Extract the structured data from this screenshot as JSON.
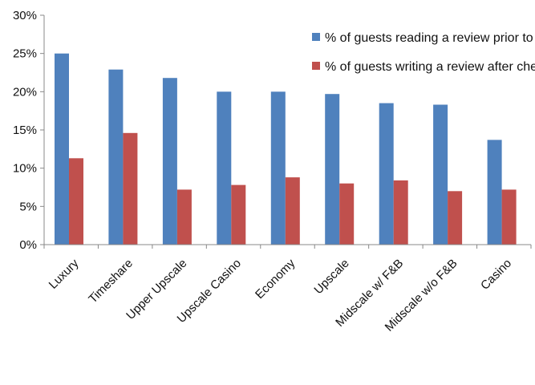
{
  "chart_data": {
    "type": "bar",
    "categories": [
      "Luxury",
      "Timeshare",
      "Upper Upscale",
      "Upscale Casino",
      "Economy",
      "Upscale",
      "Midscale w/ F&B",
      "Midscale w/o F&B",
      "Casino"
    ],
    "series": [
      {
        "name": "% of guests reading a review prior to booking",
        "color": "#4F81BD",
        "values": [
          25.0,
          22.9,
          21.8,
          20.0,
          20.0,
          19.7,
          18.5,
          18.3,
          13.7
        ]
      },
      {
        "name": "% of guests writing a review after checkout",
        "color": "#C0504D",
        "values": [
          11.3,
          14.6,
          7.2,
          7.8,
          8.8,
          8.0,
          8.4,
          7.0,
          7.2
        ]
      }
    ],
    "yticks": [
      "0%",
      "5%",
      "10%",
      "15%",
      "20%",
      "25%",
      "30%"
    ],
    "ylim": [
      0,
      30
    ],
    "legend_position": "top-right",
    "grid": false
  }
}
